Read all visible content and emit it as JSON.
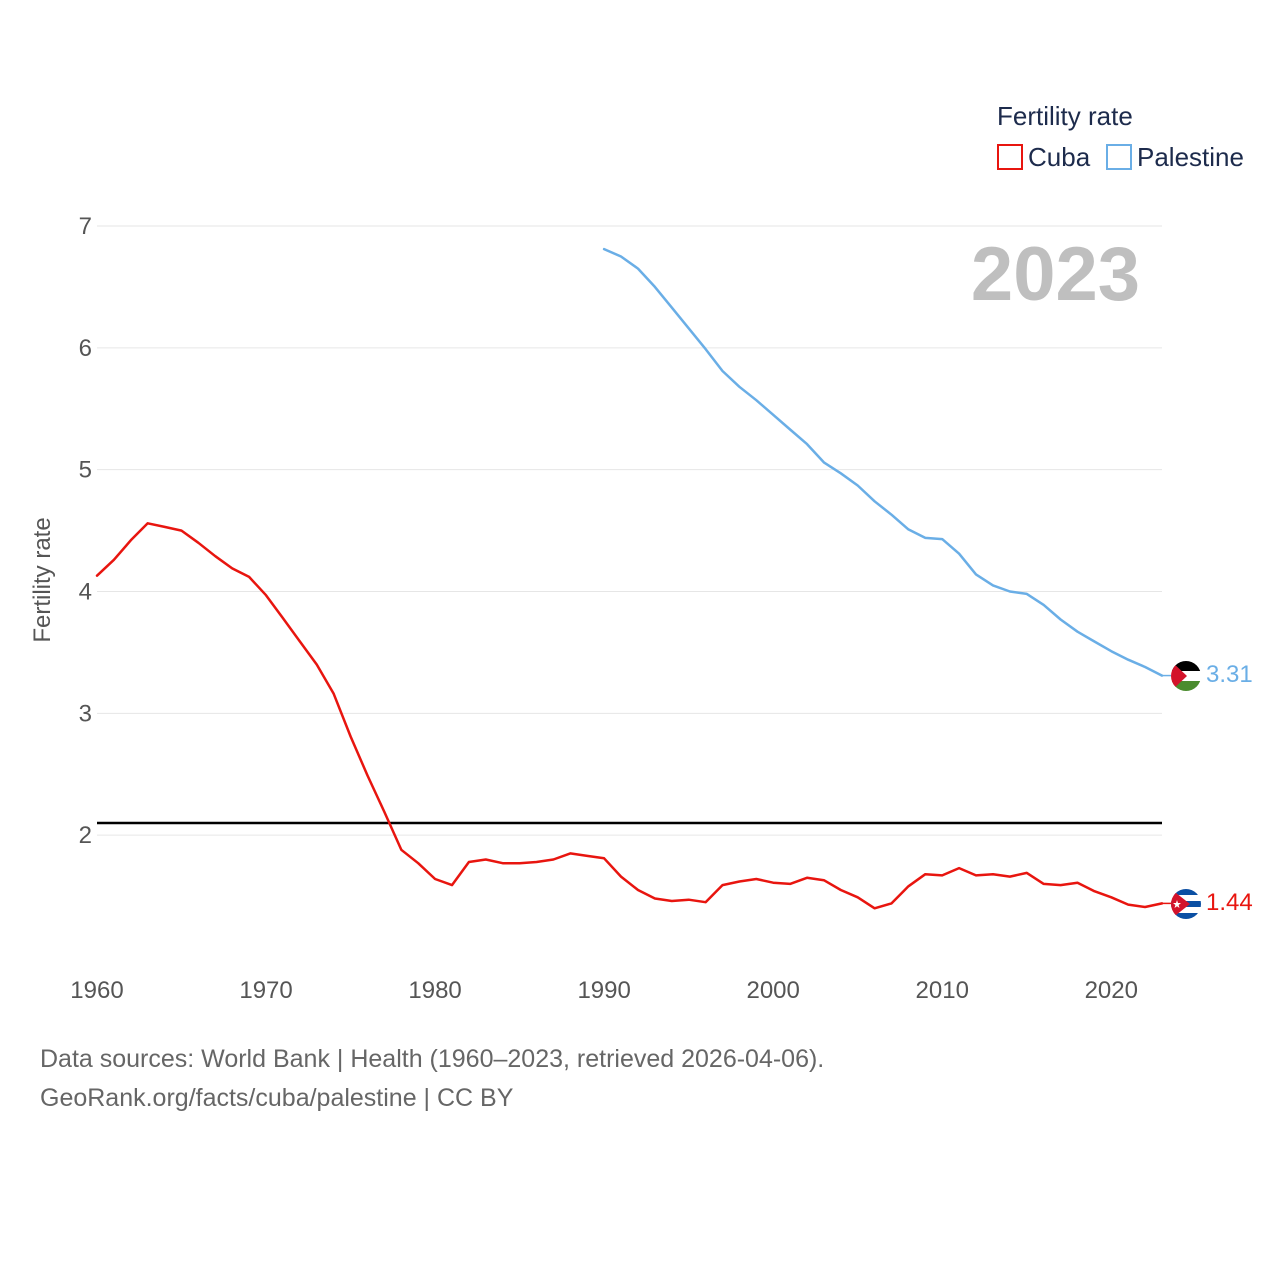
{
  "chart_data": {
    "type": "line",
    "title": "Fertility rate",
    "year_label": "2023",
    "ylabel": "Fertility rate",
    "xlabel": "",
    "xlim": [
      1960,
      2023
    ],
    "ylim": [
      1,
      7
    ],
    "y_ticks": [
      2,
      3,
      4,
      5,
      6,
      7
    ],
    "x_ticks": [
      1960,
      1970,
      1980,
      1990,
      2000,
      2010,
      2020
    ],
    "grid": true,
    "legend_position": "top-right",
    "reference_line": {
      "y": 2.1,
      "color": "#000000"
    },
    "series": [
      {
        "name": "Cuba",
        "color": "#e8150f",
        "end_label": "1.44",
        "x": [
          1960,
          1961,
          1962,
          1963,
          1964,
          1965,
          1966,
          1967,
          1968,
          1969,
          1970,
          1971,
          1972,
          1973,
          1974,
          1975,
          1976,
          1977,
          1978,
          1979,
          1980,
          1981,
          1982,
          1983,
          1984,
          1985,
          1986,
          1987,
          1988,
          1989,
          1990,
          1991,
          1992,
          1993,
          1994,
          1995,
          1996,
          1997,
          1998,
          1999,
          2000,
          2001,
          2002,
          2003,
          2004,
          2005,
          2006,
          2007,
          2008,
          2009,
          2010,
          2011,
          2012,
          2013,
          2014,
          2015,
          2016,
          2017,
          2018,
          2019,
          2020,
          2021,
          2022,
          2023
        ],
        "values": [
          4.13,
          4.26,
          4.42,
          4.56,
          4.53,
          4.5,
          4.4,
          4.29,
          4.19,
          4.12,
          3.97,
          3.78,
          3.59,
          3.4,
          3.16,
          2.81,
          2.49,
          2.19,
          1.88,
          1.77,
          1.64,
          1.59,
          1.78,
          1.8,
          1.77,
          1.77,
          1.78,
          1.8,
          1.85,
          1.83,
          1.81,
          1.66,
          1.55,
          1.48,
          1.46,
          1.47,
          1.45,
          1.59,
          1.62,
          1.64,
          1.61,
          1.6,
          1.65,
          1.63,
          1.55,
          1.49,
          1.4,
          1.44,
          1.58,
          1.68,
          1.67,
          1.73,
          1.67,
          1.68,
          1.66,
          1.69,
          1.6,
          1.59,
          1.61,
          1.54,
          1.49,
          1.43,
          1.41,
          1.44
        ]
      },
      {
        "name": "Palestine",
        "color": "#6aaee6",
        "end_label": "3.31",
        "x": [
          1990,
          1991,
          1992,
          1993,
          1994,
          1995,
          1996,
          1997,
          1998,
          1999,
          2000,
          2001,
          2002,
          2003,
          2004,
          2005,
          2006,
          2007,
          2008,
          2009,
          2010,
          2011,
          2012,
          2013,
          2014,
          2015,
          2016,
          2017,
          2018,
          2019,
          2020,
          2021,
          2022,
          2023
        ],
        "values": [
          6.81,
          6.75,
          6.65,
          6.5,
          6.33,
          6.16,
          5.99,
          5.81,
          5.68,
          5.57,
          5.45,
          5.33,
          5.21,
          5.06,
          4.97,
          4.87,
          4.74,
          4.63,
          4.51,
          4.44,
          4.43,
          4.31,
          4.14,
          4.05,
          4.0,
          3.98,
          3.89,
          3.77,
          3.67,
          3.59,
          3.51,
          3.44,
          3.38,
          3.31
        ]
      }
    ]
  },
  "footer": {
    "line1": "Data sources: World Bank | Health (1960–2023, retrieved 2026-04-06).",
    "line2": "GeoRank.org/facts/cuba/palestine | CC BY"
  },
  "colors": {
    "grid": "#e6e6e6",
    "tick_text": "#555555",
    "legend_text": "#1d2b4c",
    "year_text": "#bfbfbf"
  }
}
